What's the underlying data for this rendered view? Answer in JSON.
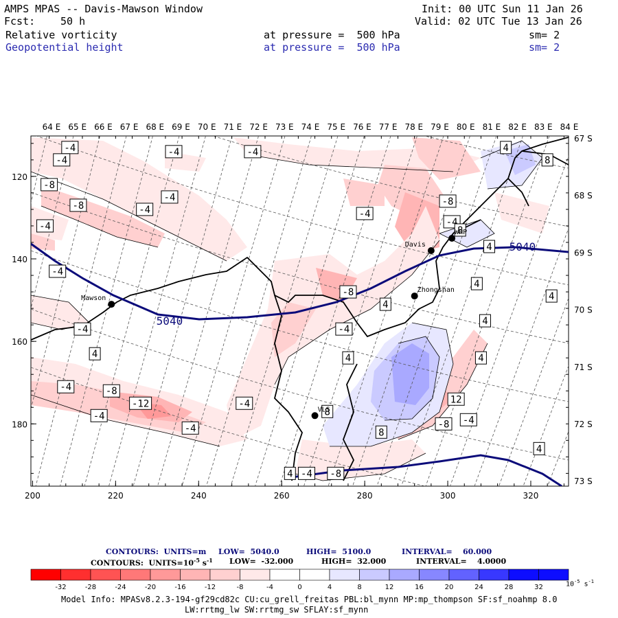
{
  "header": {
    "title": "AMPS MPAS -- Davis-Mawson Window",
    "fcst_label": "Fcst:",
    "fcst_value": "50 h",
    "init": "Init: 00 UTC Sun 11 Jan 26",
    "valid": "Valid: 02 UTC Tue 13 Jan 26",
    "fields": [
      {
        "name": "Relative vorticity",
        "level": "at pressure =  500 hPa",
        "sm": "sm= 2",
        "color": "#000000"
      },
      {
        "name": "Geopotential height",
        "level": "at pressure =  500 hPa",
        "sm": "sm= 2",
        "color": "#2a2ab0"
      }
    ]
  },
  "axes": {
    "top_lon_labels": [
      "64 E",
      "65 E",
      "66 E",
      "67 E",
      "68 E",
      "69 E",
      "70 E",
      "71 E",
      "72 E",
      "73 E",
      "74 E",
      "75 E",
      "76 E",
      "77 E",
      "78 E",
      "79 E",
      "80 E",
      "81 E",
      "82 E",
      "83 E",
      "84 E"
    ],
    "right_lat_labels": [
      "67 S",
      "68 S",
      "69 S",
      "70 S",
      "71 S",
      "72 S",
      "73 S"
    ],
    "left_y_ticks": [
      "120",
      "140",
      "160",
      "180"
    ],
    "bottom_x_ticks": [
      "200",
      "220",
      "240",
      "260",
      "280",
      "300",
      "320"
    ]
  },
  "stations": [
    {
      "name": "Mawson",
      "x": 219,
      "y": 151
    },
    {
      "name": "Davis",
      "x": 296,
      "y": 138
    },
    {
      "name": "WHP",
      "x": 301,
      "y": 135
    },
    {
      "name": "Zhongshan",
      "x": 292,
      "y": 149
    },
    {
      "name": "VLS",
      "x": 268,
      "y": 178
    }
  ],
  "contour_labels": [
    {
      "text": "-4",
      "x": 209,
      "y": 113
    },
    {
      "text": "-4",
      "x": 234,
      "y": 114
    },
    {
      "text": "-4",
      "x": 253,
      "y": 114
    },
    {
      "text": "-4",
      "x": 207,
      "y": 116
    },
    {
      "text": "-8",
      "x": 204,
      "y": 122
    },
    {
      "text": "-8",
      "x": 211,
      "y": 127
    },
    {
      "text": "-4",
      "x": 227,
      "y": 128
    },
    {
      "text": "-4",
      "x": 233,
      "y": 125
    },
    {
      "text": "-4",
      "x": 203,
      "y": 132
    },
    {
      "text": "-4",
      "x": 206,
      "y": 143
    },
    {
      "text": "-8",
      "x": 300,
      "y": 126
    },
    {
      "text": "-4",
      "x": 301,
      "y": 131
    },
    {
      "text": "-4",
      "x": 280,
      "y": 129
    },
    {
      "text": "-8",
      "x": 276,
      "y": 148
    },
    {
      "text": "-4",
      "x": 275,
      "y": 157
    },
    {
      "text": "-4",
      "x": 212,
      "y": 157
    },
    {
      "text": "-4",
      "x": 208,
      "y": 171
    },
    {
      "text": "-8",
      "x": 219,
      "y": 172
    },
    {
      "text": "-4",
      "x": 216,
      "y": 178
    },
    {
      "text": "-12",
      "x": 226,
      "y": 175
    },
    {
      "text": "-4",
      "x": 238,
      "y": 181
    },
    {
      "text": "-4",
      "x": 251,
      "y": 175
    },
    {
      "text": "-8",
      "x": 299,
      "y": 180
    },
    {
      "text": "-4",
      "x": 305,
      "y": 179
    },
    {
      "text": "-8",
      "x": 273,
      "y": 192
    },
    {
      "text": "-4",
      "x": 266,
      "y": 192
    },
    {
      "text": "4",
      "x": 314,
      "y": 113
    },
    {
      "text": "8",
      "x": 324,
      "y": 116
    },
    {
      "text": "8",
      "x": 303,
      "y": 133
    },
    {
      "text": "4",
      "x": 310,
      "y": 137
    },
    {
      "text": "4",
      "x": 307,
      "y": 146
    },
    {
      "text": "4",
      "x": 325,
      "y": 149
    },
    {
      "text": "4",
      "x": 285,
      "y": 151
    },
    {
      "text": "4",
      "x": 309,
      "y": 155
    },
    {
      "text": "4",
      "x": 276,
      "y": 164
    },
    {
      "text": "4",
      "x": 308,
      "y": 164
    },
    {
      "text": "8",
      "x": 271,
      "y": 177
    },
    {
      "text": "12",
      "x": 302,
      "y": 174
    },
    {
      "text": "8",
      "x": 284,
      "y": 182
    },
    {
      "text": "4",
      "x": 322,
      "y": 186
    },
    {
      "text": "4",
      "x": 215,
      "y": 163
    },
    {
      "text": "4",
      "x": 262,
      "y": 192
    }
  ],
  "height_labels": [
    {
      "text": "5040",
      "x": 233,
      "y": 155
    },
    {
      "text": "5040",
      "x": 318,
      "y": 137
    }
  ],
  "legend": {
    "height_line": {
      "units": "CONTOURS:  UNITS=m",
      "low": "LOW=  5040.0",
      "high": "HIGH=  5100.0",
      "interval": "INTERVAL=    60.000"
    },
    "vort_line": {
      "units": "CONTOURS:  UNITS=10",
      "exp": "-5",
      "unit_s": "s",
      "unit_exp": "-1",
      "low": "LOW=  -32.000",
      "high": "HIGH=  32.000",
      "interval": "INTERVAL=    4.0000"
    },
    "colorbar_ticks": [
      "-32",
      "-28",
      "-24",
      "-20",
      "-16",
      "-12",
      "-8",
      "-4",
      "0",
      "4",
      "8",
      "12",
      "16",
      "20",
      "24",
      "28",
      "32"
    ],
    "colorbar_unit": "10",
    "colorbar_unit_exp": "-5",
    "colorbar_unit_s": "s",
    "colorbar_unit_s_exp": "-1",
    "colors": [
      "#ff0000",
      "#ff2f2f",
      "#ff5353",
      "#ff7878",
      "#ff9999",
      "#ffb5b5",
      "#ffd0d0",
      "#ffe9e9",
      "#ffffff",
      "#ffffff",
      "#e7e7ff",
      "#cacaff",
      "#a9a9ff",
      "#8787ff",
      "#6262ff",
      "#3838ff",
      "#0d0dff"
    ]
  },
  "footer": {
    "line1": "Model Info: MPASv8.2.3-194-gf29cd82c CU:cu_grell_freitas PBL:bl_mynn MP:mp_thompson SF:sf_noahmp 8.0",
    "line2": "LW:rrtmg_lw SW:rrtmg_sw SFLAY:sf_mynn"
  }
}
